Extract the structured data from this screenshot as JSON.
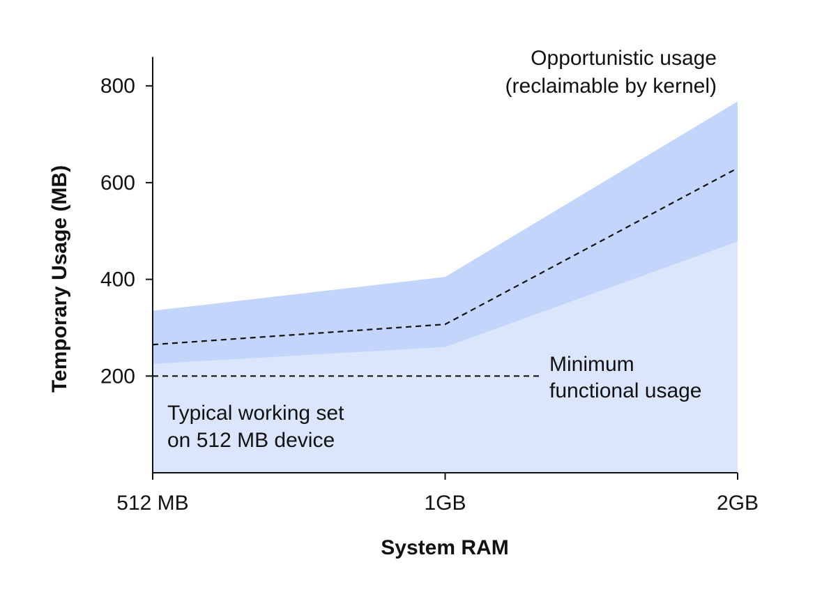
{
  "chart_data": {
    "type": "area",
    "x": [
      "512 MB",
      "1GB",
      "2GB"
    ],
    "xlabel": "System RAM",
    "ylabel": "Temporary Usage (MB)",
    "ylim": [
      0,
      860
    ],
    "yticks": [
      200,
      400,
      600,
      800
    ],
    "grid": false,
    "legend": "none",
    "series": [
      {
        "role": "base_area",
        "values": [
          225,
          260,
          478
        ],
        "color": "#dbe6fd"
      },
      {
        "role": "band",
        "lower": [
          225,
          260,
          478
        ],
        "upper": [
          335,
          405,
          768
        ],
        "color": "#c3d5fb"
      },
      {
        "role": "dashed_line",
        "values": [
          265,
          307,
          630
        ],
        "color": "#111111"
      }
    ],
    "reference_line": {
      "y": 200,
      "x_range": [
        "512 MB",
        "1.33GB"
      ]
    },
    "annotations": {
      "opportunistic": [
        "Opportunistic usage",
        "(reclaimable by kernel)"
      ],
      "minimum": [
        "Minimum",
        "functional usage"
      ],
      "typical": [
        "Typical working set",
        "on 512 MB device"
      ]
    }
  }
}
